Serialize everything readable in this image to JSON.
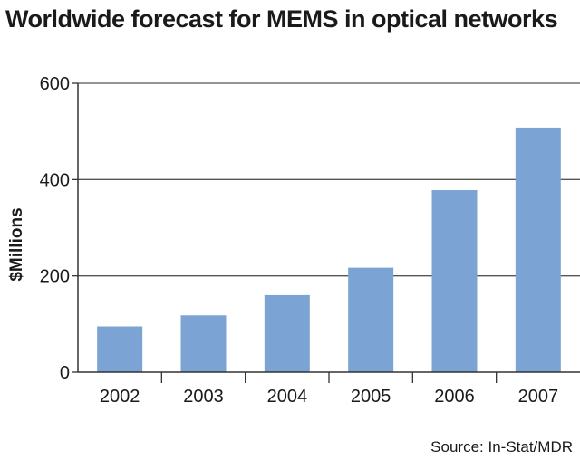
{
  "chart_data": {
    "type": "bar",
    "title": "Worldwide forecast for MEMS in optical networks",
    "xlabel": "",
    "ylabel": "$Millions",
    "source": "Source: In-Stat/MDR",
    "categories": [
      "2002",
      "2003",
      "2004",
      "2005",
      "2006",
      "2007"
    ],
    "values": [
      95,
      118,
      160,
      217,
      378,
      508
    ],
    "ylim": [
      0,
      600
    ],
    "yticks": [
      0,
      200,
      400,
      600
    ],
    "grid": true,
    "bar_color": "#7ba3d4",
    "grid_color": "#555555"
  }
}
